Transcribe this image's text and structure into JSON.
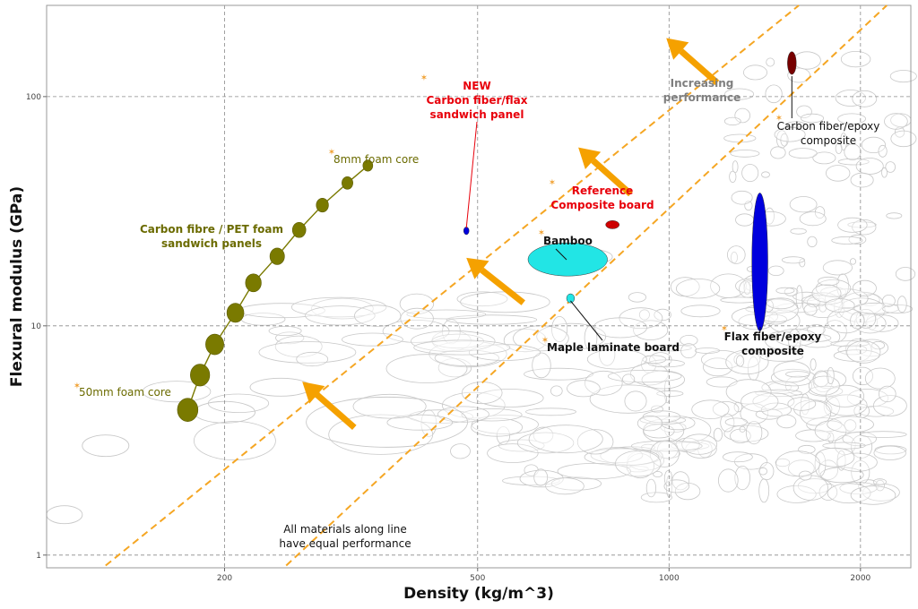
{
  "chart_data": {
    "type": "scatter",
    "xlabel": "Density (kg/m^3)",
    "ylabel": "Flexural modulus (GPa)",
    "x_scale": "log",
    "y_scale": "log",
    "xlim": [
      105,
      2400
    ],
    "ylim": [
      0.88,
      250
    ],
    "x_ticks": [
      200,
      500,
      1000,
      2000
    ],
    "x_tick_labels": [
      "200",
      "500",
      "1000",
      "2000"
    ],
    "y_ticks": [
      1,
      10,
      100
    ],
    "y_tick_labels": [
      "1",
      "10",
      "100"
    ],
    "grid": true,
    "colors": {
      "foam_series": "#7a7a00",
      "guide_line": "#f5a623",
      "arrow": "#f5a100",
      "new_panel": "#0000dd",
      "reference_board": "#cc0000",
      "bamboo": "#22e5e5",
      "maple": "#22e5e5",
      "flax_epoxy": "#0000dd",
      "carbon_epoxy": "#770000",
      "red_label": "#e8000b",
      "background_materials": "#c8c8c8",
      "performance_text": "#7f7f7f"
    },
    "series": [
      {
        "name": "Carbon fibre / PET foam sandwich panels",
        "points": [
          {
            "x": 175,
            "y": 4.3
          },
          {
            "x": 183,
            "y": 6.1
          },
          {
            "x": 193,
            "y": 8.3
          },
          {
            "x": 208,
            "y": 11.4
          },
          {
            "x": 222,
            "y": 15.4
          },
          {
            "x": 242,
            "y": 20.1
          },
          {
            "x": 262,
            "y": 26.2
          },
          {
            "x": 285,
            "y": 33.6
          },
          {
            "x": 312,
            "y": 42.0
          },
          {
            "x": 336,
            "y": 50.0
          }
        ]
      }
    ],
    "highlighted_materials": [
      {
        "label": "NEW\nCarbon fiber/flax\nsandwich panel",
        "x": 480,
        "y": 26,
        "x_range": [
          476,
          484
        ],
        "y_range": [
          25,
          27
        ],
        "color_key": "new_panel"
      },
      {
        "label": "Reference\nComposite board",
        "x": 815,
        "y": 27.6,
        "x_range": [
          795,
          835
        ],
        "y_range": [
          26.5,
          28.8
        ],
        "color_key": "reference_board"
      },
      {
        "label": "Bamboo",
        "x": 700,
        "y": 19.6,
        "x_range": [
          600,
          800
        ],
        "y_range": [
          16.5,
          23
        ],
        "color_key": "bamboo"
      },
      {
        "label": "Maple laminate board",
        "x": 700,
        "y": 13.2,
        "x_range": [
          690,
          710
        ],
        "y_range": [
          12.6,
          13.8
        ],
        "color_key": "maple"
      },
      {
        "label": "Flax fiber/epoxy\ncomposite",
        "x": 1390,
        "y": 19.5,
        "x_range": [
          1350,
          1430
        ],
        "y_range": [
          9.5,
          38
        ],
        "color_key": "flax_epoxy"
      },
      {
        "label": "Carbon fiber/epoxy\ncomposite",
        "x": 1560,
        "y": 140,
        "x_range": [
          1535,
          1585
        ],
        "y_range": [
          125,
          157
        ],
        "color_key": "carbon_epoxy"
      }
    ],
    "annotations": [
      {
        "text": "8mm foam core"
      },
      {
        "text": "50mm foam core"
      },
      {
        "text": "Carbon fibre / PET foam\nsandwich panels"
      },
      {
        "text": "Increasing\nperformance"
      },
      {
        "text": "All materials along line\nhave equal performance"
      }
    ],
    "guide_lines": [
      {
        "points": [
          {
            "x": 130,
            "y": 0.9
          },
          {
            "x": 1600,
            "y": 250
          }
        ]
      },
      {
        "points": [
          {
            "x": 250,
            "y": 0.9
          },
          {
            "x": 2200,
            "y": 250
          }
        ]
      }
    ],
    "arrows": [
      {
        "from": {
          "x": 320,
          "y": 3.6
        },
        "to": {
          "x": 265,
          "y": 5.7
        }
      },
      {
        "from": {
          "x": 590,
          "y": 12.6
        },
        "to": {
          "x": 480,
          "y": 19.8
        }
      },
      {
        "from": {
          "x": 870,
          "y": 37.6
        },
        "to": {
          "x": 720,
          "y": 60
        }
      },
      {
        "from": {
          "x": 1190,
          "y": 115
        },
        "to": {
          "x": 990,
          "y": 180
        }
      }
    ]
  }
}
